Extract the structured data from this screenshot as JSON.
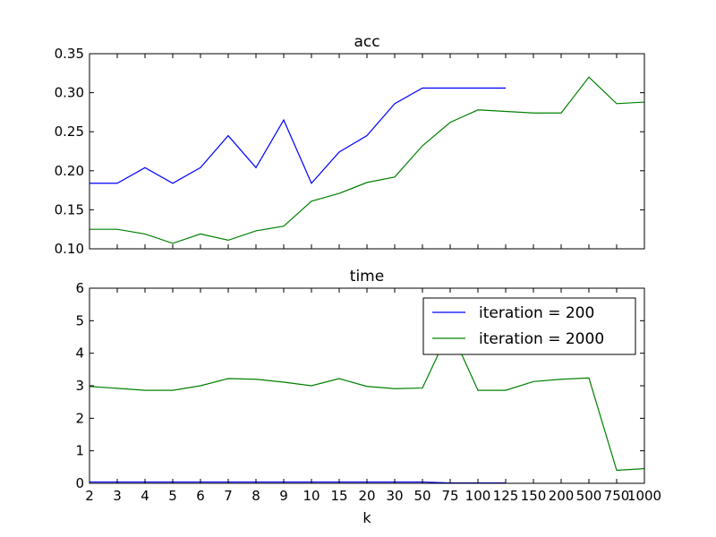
{
  "chart_data": [
    {
      "type": "line",
      "title": "acc",
      "xlabel": "",
      "ylabel": "",
      "categories": [
        "2",
        "3",
        "4",
        "5",
        "6",
        "7",
        "8",
        "9",
        "10",
        "15",
        "20",
        "30",
        "50",
        "75",
        "100",
        "125",
        "150",
        "200",
        "500",
        "750",
        "1000"
      ],
      "ylim": [
        0.1,
        0.35
      ],
      "yticks": [
        "0.10",
        "0.15",
        "0.20",
        "0.25",
        "0.30",
        "0.35"
      ],
      "grid": false,
      "colors": [
        "#0000ff",
        "#008000"
      ],
      "series": [
        {
          "name": "iteration = 200",
          "color": "#0000ff",
          "values": [
            0.184,
            0.184,
            0.204,
            0.184,
            0.204,
            0.245,
            0.204,
            0.265,
            0.184,
            0.224,
            0.245,
            0.286,
            0.306,
            0.306,
            0.306,
            0.306,
            null,
            null,
            null,
            null,
            null
          ]
        },
        {
          "name": "iteration = 2000",
          "color": "#008000",
          "values": [
            0.125,
            0.125,
            0.119,
            0.107,
            0.119,
            0.111,
            0.123,
            0.129,
            0.161,
            0.171,
            0.185,
            0.192,
            0.232,
            0.262,
            0.278,
            0.276,
            0.274,
            0.274,
            0.32,
            0.286,
            0.288
          ]
        }
      ]
    },
    {
      "type": "line",
      "title": "time",
      "xlabel": "k",
      "ylabel": "",
      "categories": [
        "2",
        "3",
        "4",
        "5",
        "6",
        "7",
        "8",
        "9",
        "10",
        "15",
        "20",
        "30",
        "50",
        "75",
        "100",
        "125",
        "150",
        "200",
        "500",
        "750",
        "1000"
      ],
      "xticks": [
        "2",
        "3",
        "4",
        "5",
        "6",
        "7",
        "8",
        "9",
        "10",
        "15",
        "20",
        "30",
        "50",
        "75",
        "100",
        "125",
        "150",
        "200",
        "500",
        "750",
        "1000"
      ],
      "ylim": [
        0,
        6
      ],
      "yticks": [
        "0",
        "1",
        "2",
        "3",
        "4",
        "5",
        "6"
      ],
      "grid": false,
      "legend_position": "top-right",
      "series": [
        {
          "name": "iteration = 200",
          "color": "#0000ff",
          "values": [
            0.04,
            0.04,
            0.04,
            0.04,
            0.04,
            0.04,
            0.04,
            0.04,
            0.04,
            0.04,
            0.04,
            0.04,
            0.04,
            0.01,
            0.01,
            0.01,
            null,
            null,
            null,
            null,
            null
          ]
        },
        {
          "name": "iteration = 2000",
          "color": "#008000",
          "values": [
            2.98,
            2.92,
            2.86,
            2.86,
            3.0,
            3.22,
            3.2,
            3.11,
            3.0,
            3.22,
            2.98,
            2.91,
            2.93,
            4.75,
            2.86,
            2.86,
            3.13,
            3.2,
            3.24,
            0.4,
            0.45
          ]
        }
      ]
    }
  ]
}
